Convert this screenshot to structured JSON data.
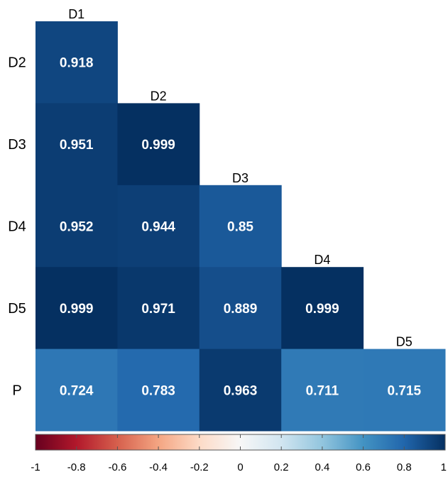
{
  "chart_data": {
    "type": "heatmap",
    "title": "",
    "columns": [
      "D1",
      "D2",
      "D3",
      "D4",
      "D5"
    ],
    "rows": [
      "D2",
      "D3",
      "D4",
      "D5",
      "P"
    ],
    "values": [
      [
        0.918,
        null,
        null,
        null,
        null
      ],
      [
        0.951,
        0.999,
        null,
        null,
        null
      ],
      [
        0.952,
        0.944,
        0.85,
        null,
        null
      ],
      [
        0.999,
        0.971,
        0.889,
        0.999,
        null
      ],
      [
        0.724,
        0.783,
        0.963,
        0.711,
        0.715
      ]
    ],
    "value_labels": [
      [
        "0.918",
        null,
        null,
        null,
        null
      ],
      [
        "0.951",
        "0.999",
        null,
        null,
        null
      ],
      [
        "0.952",
        "0.944",
        "0.85",
        null,
        null
      ],
      [
        "0.999",
        "0.971",
        "0.889",
        "0.999",
        null
      ],
      [
        "0.724",
        "0.783",
        "0.963",
        "0.711",
        "0.715"
      ]
    ],
    "colorbar": {
      "range": [
        -1,
        1
      ],
      "ticks": [
        "-1",
        "-0.8",
        "-0.6",
        "-0.4",
        "-0.2",
        "0",
        "0.2",
        "0.4",
        "0.6",
        "0.8",
        "1"
      ],
      "colors": [
        "#67001f",
        "#b2182b",
        "#d6604d",
        "#f4a582",
        "#fddbc7",
        "#f7f7f7",
        "#d1e5f0",
        "#92c5de",
        "#4393c3",
        "#2166ac",
        "#053061"
      ]
    },
    "grid": false,
    "legend": "bottom"
  }
}
